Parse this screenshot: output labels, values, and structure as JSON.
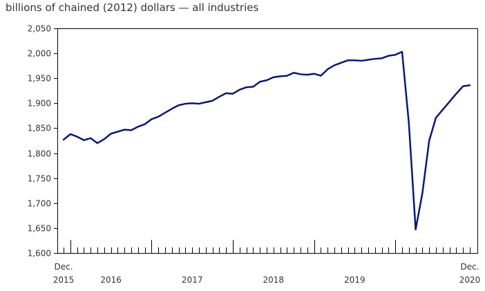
{
  "chart_data": {
    "type": "line",
    "title": "billions of chained (2012) dollars — all industries",
    "xlabel": "",
    "ylabel": "",
    "ylim": [
      1600,
      2050
    ],
    "yticks": [
      1600,
      1650,
      1700,
      1750,
      1800,
      1850,
      1900,
      1950,
      2000,
      2050
    ],
    "ytick_labels": [
      "1,600",
      "1,650",
      "1,700",
      "1,750",
      "1,800",
      "1,850",
      "1,900",
      "1,950",
      "2,000",
      "2,050"
    ],
    "x_start": "Dec. 2015",
    "x_end": "Dec. 2020",
    "x_labels": [
      {
        "month_index": 0,
        "line1": "Dec.",
        "line2": "2015"
      },
      {
        "month_index": 7,
        "line1": "",
        "line2": "2016"
      },
      {
        "month_index": 19,
        "line1": "",
        "line2": "2017"
      },
      {
        "month_index": 31,
        "line1": "",
        "line2": "2018"
      },
      {
        "month_index": 43,
        "line1": "",
        "line2": "2019"
      },
      {
        "month_index": 60,
        "line1": "Dec.",
        "line2": "2020"
      }
    ],
    "series_color": "#0b1673",
    "series": [
      {
        "name": "all industries",
        "values": [
          1827,
          1838,
          1833,
          1826,
          1830,
          1820,
          1828,
          1839,
          1843,
          1847,
          1846,
          1853,
          1858,
          1868,
          1873,
          1881,
          1889,
          1896,
          1899,
          1900,
          1899,
          1902,
          1905,
          1913,
          1920,
          1919,
          1927,
          1932,
          1933,
          1943,
          1946,
          1952,
          1954,
          1955,
          1961,
          1958,
          1957,
          1959,
          1955,
          1968,
          1976,
          1981,
          1986,
          1986,
          1985,
          1987,
          1989,
          1990,
          1995,
          1997,
          2003,
          1860,
          1647,
          1720,
          1825,
          1871,
          1887,
          1903,
          1919,
          1934,
          1936
        ]
      }
    ]
  }
}
